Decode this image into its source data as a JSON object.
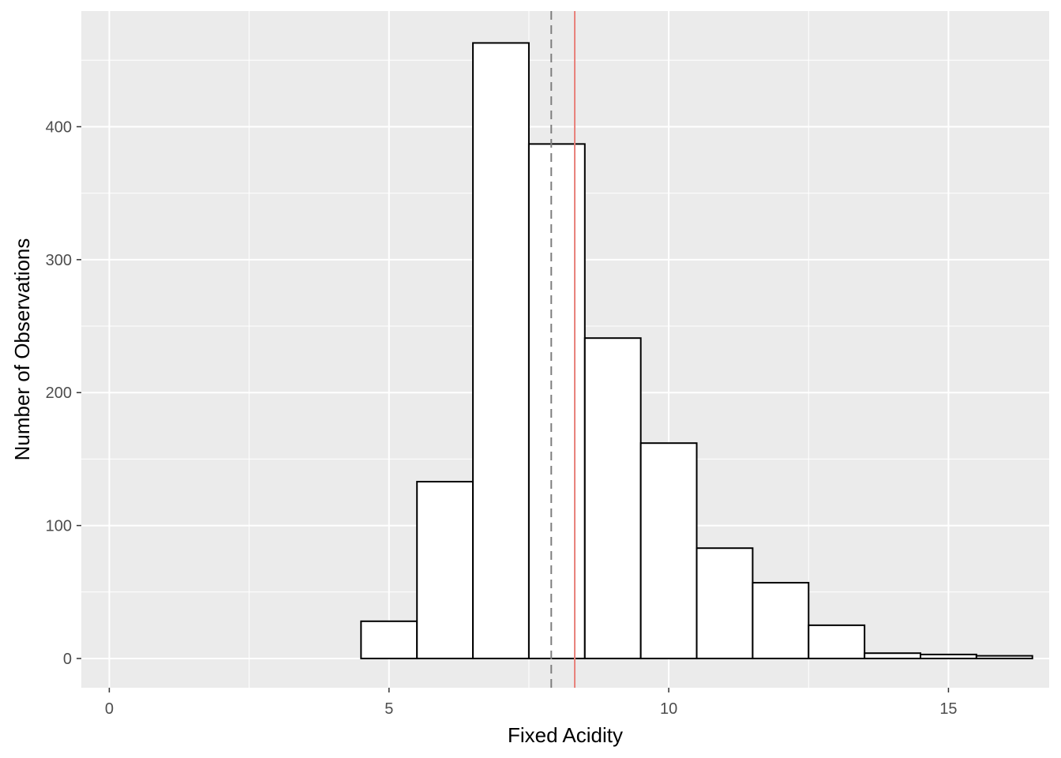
{
  "chart_data": {
    "type": "bar",
    "subtype": "histogram",
    "title": "",
    "xlabel": "Fixed Acidity",
    "ylabel": "Number of Observations",
    "xlim": [
      -0.5,
      16.8
    ],
    "ylim": [
      -22,
      487
    ],
    "xticks": [
      0,
      5,
      10,
      15
    ],
    "xtick_labels": [
      "0",
      "5",
      "10",
      "15"
    ],
    "yticks": [
      0,
      100,
      200,
      300,
      400
    ],
    "ytick_labels": [
      "0",
      "100",
      "200",
      "300",
      "400"
    ],
    "bin_width": 1,
    "bins": [
      {
        "x0": 4.5,
        "x1": 5.5,
        "count": 28
      },
      {
        "x0": 5.5,
        "x1": 6.5,
        "count": 133
      },
      {
        "x0": 6.5,
        "x1": 7.5,
        "count": 463
      },
      {
        "x0": 7.5,
        "x1": 8.5,
        "count": 387
      },
      {
        "x0": 8.5,
        "x1": 9.5,
        "count": 241
      },
      {
        "x0": 9.5,
        "x1": 10.5,
        "count": 162
      },
      {
        "x0": 10.5,
        "x1": 11.5,
        "count": 83
      },
      {
        "x0": 11.5,
        "x1": 12.5,
        "count": 57
      },
      {
        "x0": 12.5,
        "x1": 13.5,
        "count": 25
      },
      {
        "x0": 13.5,
        "x1": 14.5,
        "count": 4
      },
      {
        "x0": 14.5,
        "x1": 15.5,
        "count": 3
      },
      {
        "x0": 15.5,
        "x1": 16.5,
        "count": 2
      }
    ],
    "reference_lines": [
      {
        "value": 7.9,
        "style": "dashed",
        "color": "#7f7f7f"
      },
      {
        "value": 8.32,
        "style": "solid",
        "color": "#e8807a"
      }
    ],
    "grid": true,
    "colors": {
      "panel_background": "#ebebeb",
      "grid_line": "#ffffff",
      "bar_fill": "#ffffff",
      "bar_outline": "#000000"
    }
  }
}
